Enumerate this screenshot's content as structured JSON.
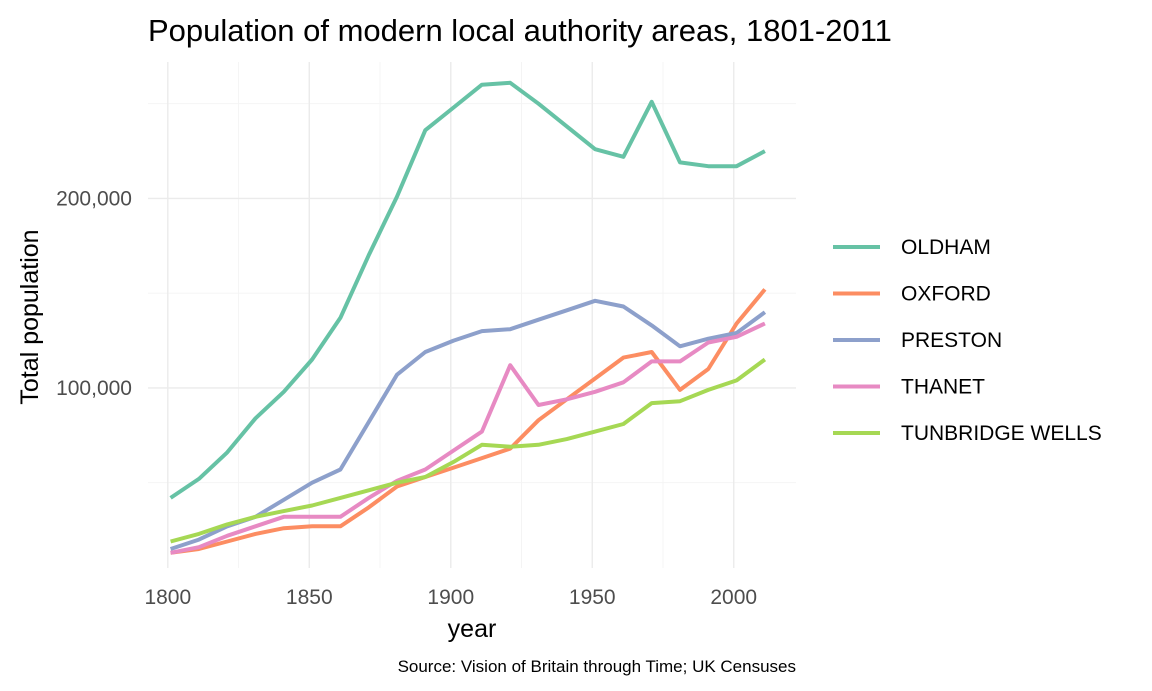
{
  "chart_data": {
    "type": "line",
    "title": "Population of modern local authority areas, 1801-2011",
    "xlabel": "year",
    "ylabel": "Total population",
    "caption": "Source: Vision of Britain through Time; UK Censuses",
    "xlim": [
      1793,
      2022
    ],
    "ylim": [
      5000,
      272000
    ],
    "x_ticks": [
      1800,
      1850,
      1900,
      1950,
      2000
    ],
    "x_tick_labels": [
      "1800",
      "1850",
      "1900",
      "1950",
      "2000"
    ],
    "y_ticks": [
      100000,
      200000
    ],
    "y_tick_labels": [
      "100,000",
      "200,000"
    ],
    "grid": true,
    "legend_position": "right",
    "x": [
      1801,
      1811,
      1821,
      1831,
      1841,
      1851,
      1861,
      1871,
      1881,
      1891,
      1901,
      1911,
      1921,
      1931,
      1941,
      1951,
      1961,
      1971,
      1981,
      1991,
      2001,
      2011
    ],
    "series": [
      {
        "name": "OLDHAM",
        "color": "#66c2a5",
        "values": [
          42000,
          52000,
          66000,
          84000,
          98000,
          115000,
          137000,
          170000,
          201000,
          236000,
          248000,
          260000,
          261000,
          250000,
          238000,
          226000,
          222000,
          251000,
          219000,
          217000,
          217000,
          225000
        ]
      },
      {
        "name": "OXFORD",
        "color": "#fc8d62",
        "values": [
          13000,
          15000,
          19000,
          23000,
          26000,
          27000,
          27000,
          37000,
          48000,
          53000,
          58000,
          63000,
          68000,
          83000,
          94000,
          105000,
          116000,
          119000,
          99000,
          110000,
          134000,
          152000
        ]
      },
      {
        "name": "PRESTON",
        "color": "#8da0cb",
        "values": [
          15000,
          20000,
          27000,
          32000,
          41000,
          50000,
          57000,
          82000,
          107000,
          119000,
          125000,
          130000,
          131000,
          136000,
          141000,
          146000,
          143000,
          133000,
          122000,
          126000,
          129000,
          140000
        ]
      },
      {
        "name": "THANET",
        "color": "#e78ac3",
        "values": [
          13000,
          16000,
          22000,
          27000,
          32000,
          32000,
          32000,
          42000,
          51000,
          57000,
          67000,
          77000,
          112000,
          91000,
          94000,
          98000,
          103000,
          114000,
          114000,
          124000,
          127000,
          134000
        ]
      },
      {
        "name": "TUNBRIDGE WELLS",
        "color": "#a6d854",
        "values": [
          19000,
          23000,
          28000,
          32000,
          35000,
          38000,
          42000,
          46000,
          50000,
          53000,
          61000,
          70000,
          69000,
          70000,
          73000,
          77000,
          81000,
          92000,
          93000,
          99000,
          104000,
          115000
        ]
      }
    ]
  }
}
